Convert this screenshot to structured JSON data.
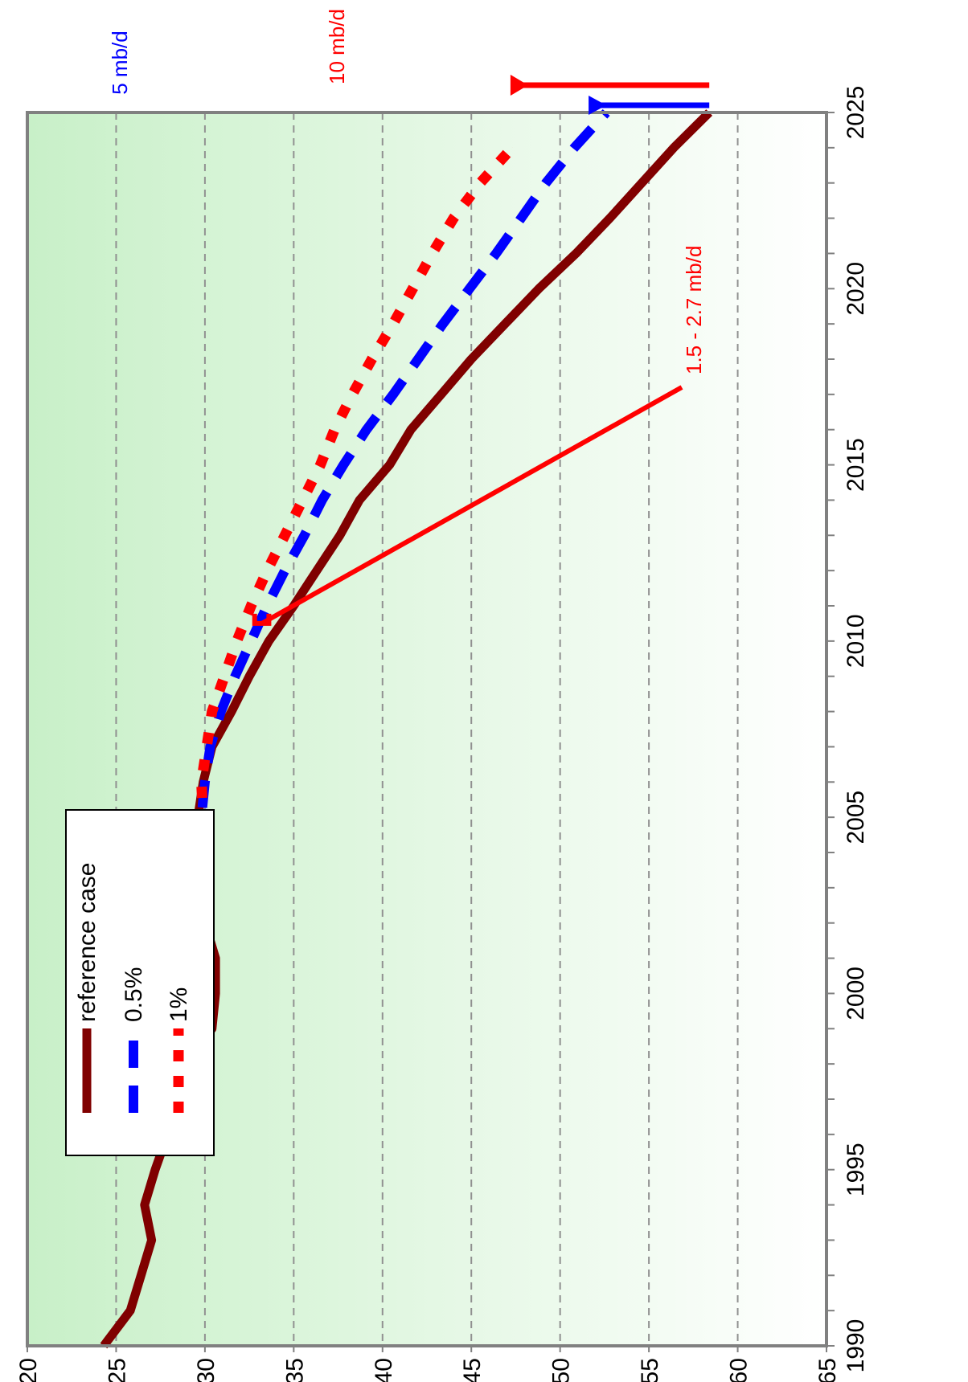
{
  "chart_data": {
    "type": "line",
    "title": "",
    "xlabel": "",
    "ylabel": "",
    "xlim": [
      1990,
      2025
    ],
    "ylim": [
      20,
      65
    ],
    "x_ticks": [
      "1990",
      "1995",
      "2000",
      "2005",
      "2010",
      "2015",
      "2020",
      "2025"
    ],
    "y_ticks": [
      "20",
      "25",
      "30",
      "35",
      "40",
      "45",
      "50",
      "55",
      "60",
      "65"
    ],
    "grid": "horizontal dashed",
    "legend_position": "top-left",
    "orientation": "rotated 90 degrees clockwise",
    "colors": {
      "reference": "#800000",
      "half_pct": "#0000ff",
      "one_pct": "#ff0000",
      "background_top": "#c8f0c8",
      "background_bottom": "#ffffff"
    },
    "series": [
      {
        "name": "reference case",
        "style": "solid",
        "color": "#800000",
        "x": [
          1990,
          1991,
          1992,
          1993,
          1994,
          1995,
          1996,
          1997,
          1998,
          1999,
          2000,
          2001,
          2002,
          2003,
          2004,
          2005,
          2006,
          2007,
          2008,
          2009,
          2010,
          2011,
          2012,
          2013,
          2014,
          2015,
          2016,
          2017,
          2018,
          2019,
          2020,
          2021,
          2022,
          2023,
          2024,
          2025
        ],
        "values": [
          24.3,
          25.8,
          26.4,
          27.0,
          26.6,
          27.2,
          27.9,
          28.5,
          28.8,
          30.4,
          30.6,
          30.6,
          30.0,
          29.6,
          29.6,
          29.6,
          29.9,
          30.4,
          31.5,
          32.5,
          33.6,
          35.0,
          36.3,
          37.6,
          38.7,
          40.4,
          41.6,
          43.3,
          45.0,
          46.9,
          48.8,
          50.9,
          52.8,
          54.6,
          56.4,
          58.4
        ]
      },
      {
        "name": "0.5%",
        "style": "long-dash",
        "color": "#0000ff",
        "x": [
          2004,
          2005,
          2006,
          2007,
          2008,
          2009,
          2010,
          2011,
          2012,
          2013,
          2014,
          2015,
          2016,
          2017,
          2018,
          2019,
          2020,
          2021,
          2022,
          2023,
          2024,
          2025
        ],
        "values": [
          29.8,
          29.8,
          30.0,
          30.3,
          30.9,
          31.7,
          32.6,
          33.5,
          34.5,
          35.6,
          36.6,
          37.8,
          39.1,
          40.6,
          42.0,
          43.4,
          44.9,
          46.4,
          47.8,
          49.2,
          50.8,
          52.6
        ]
      },
      {
        "name": "1%",
        "style": "short-dash",
        "color": "#ff0000",
        "x": [
          2004,
          2005,
          2006,
          2007,
          2008,
          2009,
          2010,
          2011,
          2012,
          2013,
          2014,
          2015,
          2016,
          2017,
          2018,
          2019,
          2020,
          2021,
          2022,
          2023,
          2024
        ],
        "values": [
          29.8,
          29.9,
          29.8,
          30.1,
          30.4,
          31.1,
          31.8,
          32.6,
          33.5,
          34.5,
          35.5,
          36.5,
          37.3,
          38.3,
          39.4,
          40.6,
          41.7,
          42.8,
          44.0,
          45.5,
          47.3
        ]
      }
    ],
    "legend": [
      {
        "label": "reference case",
        "color": "#800000",
        "style": "solid"
      },
      {
        "label": "0.5%",
        "color": "#0000ff",
        "style": "long-dash"
      },
      {
        "label": "1%",
        "color": "#ff0000",
        "style": "short-dash"
      }
    ],
    "annotations": [
      {
        "text": "5 mb/d",
        "color": "#0000ff",
        "x": 2025,
        "y_from": 58.4,
        "y_to": 52.6
      },
      {
        "text": "10 mb/d",
        "color": "#ff0000",
        "x": 2025,
        "y_from": 58.4,
        "y_to": 48.2
      },
      {
        "text": "1.5 - 2.7 mb/d",
        "color": "#ff0000",
        "x": 2010.5,
        "y_from": 32.8,
        "y_to": 33.6
      }
    ]
  }
}
